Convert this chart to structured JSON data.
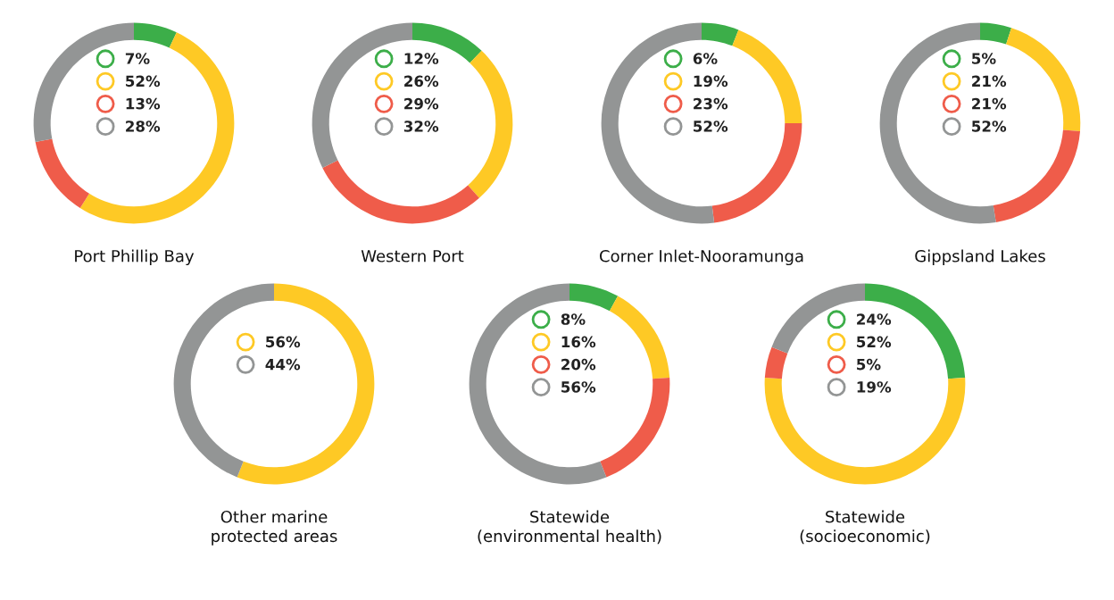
{
  "chart_data": [
    {
      "type": "donut",
      "title": "Port Phillip Bay",
      "categories": [
        "7%",
        "52%",
        "13%",
        "28%"
      ],
      "values": [
        7,
        52,
        13,
        28
      ],
      "colors": [
        "#3cae49",
        "#fec925",
        "#ef5c4a",
        "#939595"
      ],
      "legend": "center"
    },
    {
      "type": "donut",
      "title": "Western Port",
      "categories": [
        "12%",
        "26%",
        "29%",
        "32%"
      ],
      "values": [
        12,
        26,
        29,
        32
      ],
      "colors": [
        "#3cae49",
        "#fec925",
        "#ef5c4a",
        "#939595"
      ],
      "legend": "center"
    },
    {
      "type": "donut",
      "title": "Corner Inlet-Nooramunga",
      "categories": [
        "6%",
        "19%",
        "23%",
        "52%"
      ],
      "values": [
        6,
        19,
        23,
        52
      ],
      "colors": [
        "#3cae49",
        "#fec925",
        "#ef5c4a",
        "#939595"
      ],
      "legend": "center"
    },
    {
      "type": "donut",
      "title": "Gippsland Lakes",
      "categories": [
        "5%",
        "21%",
        "21%",
        "52%"
      ],
      "values": [
        5,
        21,
        21,
        52
      ],
      "colors": [
        "#3cae49",
        "#fec925",
        "#ef5c4a",
        "#939595"
      ],
      "legend": "center"
    },
    {
      "type": "donut",
      "title": "Other marine\nprotected areas",
      "categories": [
        "56%",
        "44%"
      ],
      "values": [
        56,
        44
      ],
      "colors": [
        "#fec925",
        "#939595"
      ],
      "legend": "center"
    },
    {
      "type": "donut",
      "title": "Statewide\n(environmental health)",
      "categories": [
        "8%",
        "16%",
        "20%",
        "56%"
      ],
      "values": [
        8,
        16,
        20,
        56
      ],
      "colors": [
        "#3cae49",
        "#fec925",
        "#ef5c4a",
        "#939595"
      ],
      "legend": "center"
    },
    {
      "type": "donut",
      "title": "Statewide\n(socioeconomic)",
      "categories": [
        "24%",
        "52%",
        "5%",
        "19%"
      ],
      "values": [
        24,
        52,
        5,
        19
      ],
      "colors": [
        "#3cae49",
        "#fec925",
        "#ef5c4a",
        "#939595"
      ],
      "legend": "center"
    }
  ]
}
